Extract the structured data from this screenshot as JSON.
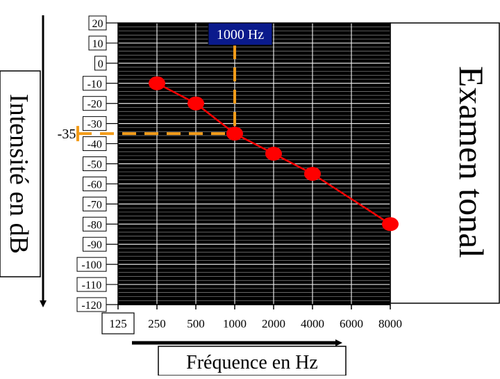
{
  "chart_data": {
    "type": "line",
    "title": "Examen tonal",
    "xlabel": "Fréquence en Hz",
    "ylabel": "Intensité en dB",
    "categories": [
      "125",
      "250",
      "500",
      "1000",
      "2000",
      "4000",
      "6000",
      "8000"
    ],
    "y_ticks": [
      "20",
      "10",
      "0",
      "-10",
      "-20",
      "-30",
      "-40",
      "-50",
      "-60",
      "-70",
      "-80",
      "-90",
      "-100",
      "-110",
      "-120"
    ],
    "ylim": [
      -120,
      20
    ],
    "y_inverted": false,
    "grid": true,
    "series": [
      {
        "x": [
          "250",
          "500",
          "1000",
          "2000",
          "4000",
          "8000"
        ],
        "values": [
          -10,
          -20,
          -35,
          -45,
          -55,
          -80
        ]
      }
    ],
    "annotations": {
      "freq_marker_label": "1000 Hz",
      "freq_marker_x": "1000",
      "level_marker_label": "-35",
      "level_marker_y": -35
    },
    "colors": {
      "series": "#ff0000",
      "marker_line": "#f39c1a",
      "annotation_box": "#0a1a8c",
      "annotation_text": "#ffffff",
      "plot_background": "#000000",
      "grid": "#cccccc"
    }
  }
}
